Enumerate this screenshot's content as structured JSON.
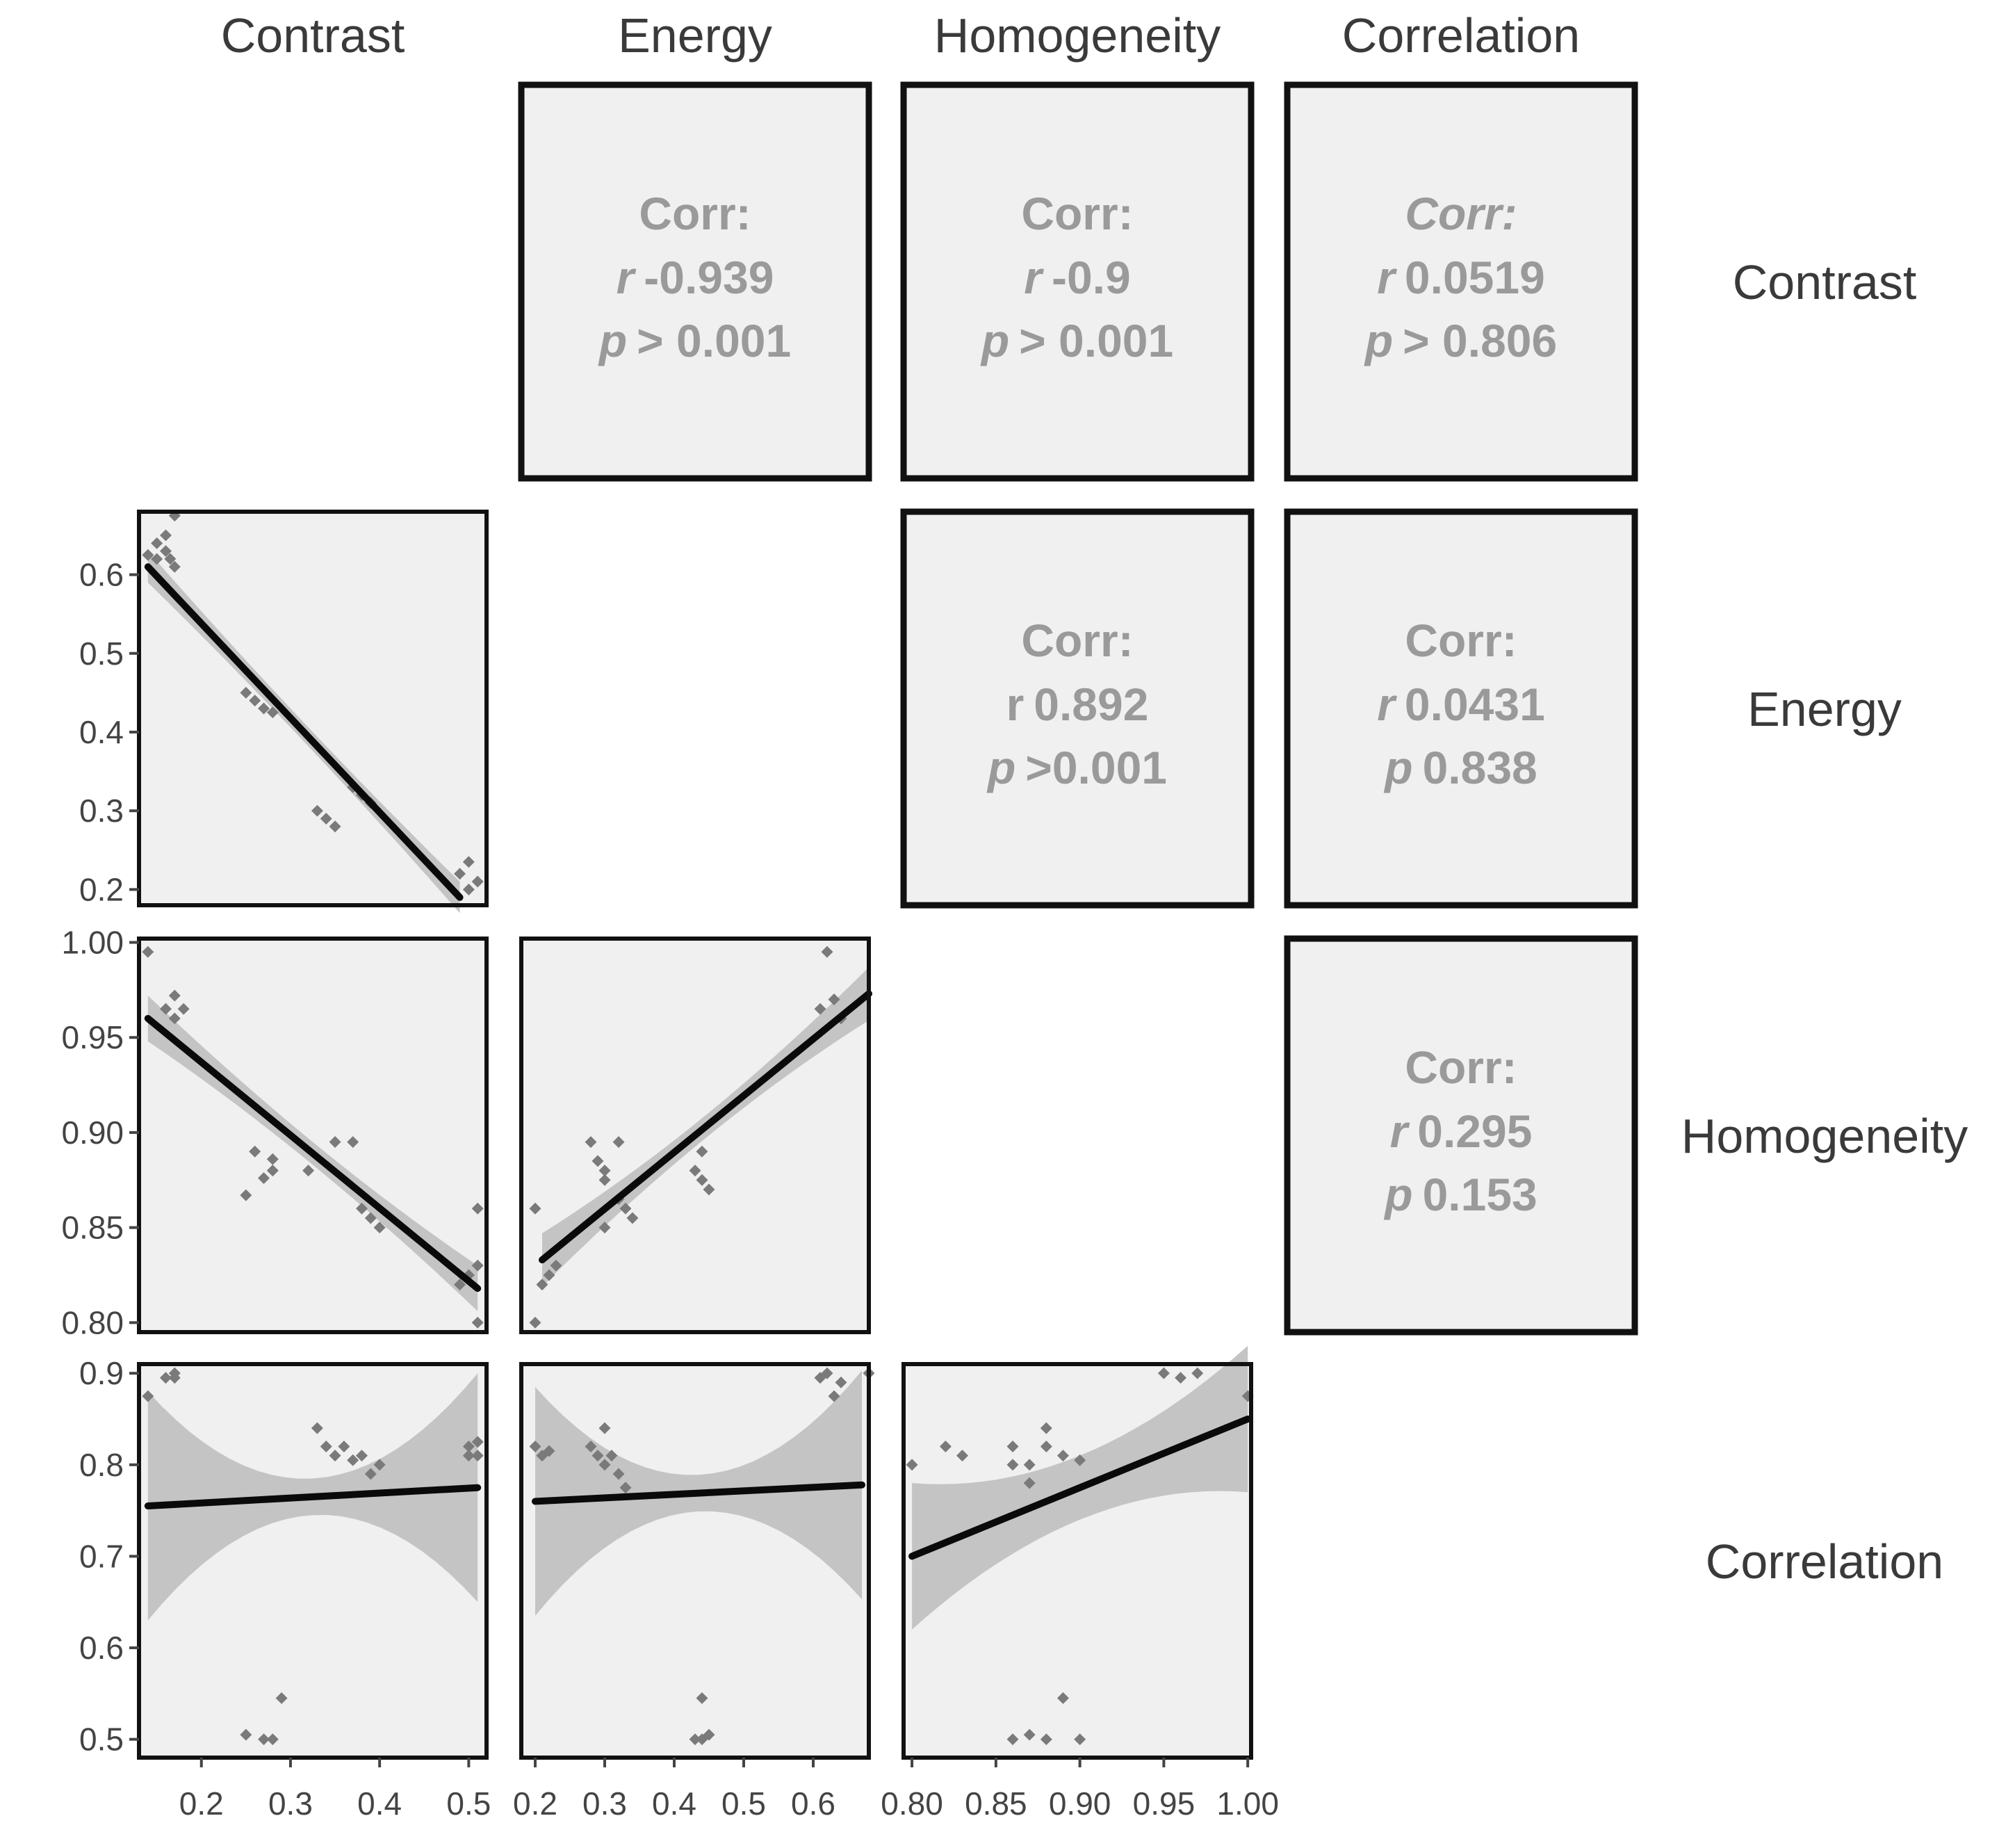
{
  "chart_data": {
    "type": "scatter",
    "title": "",
    "variables": [
      "Contrast",
      "Energy",
      "Homogeneity",
      "Correlation"
    ],
    "column_labels": [
      "Contrast",
      "Energy",
      "Homogeneity",
      "Correlation"
    ],
    "row_labels": [
      "Contrast",
      "Energy",
      "Homogeneity",
      "Correlation"
    ],
    "axes": {
      "Contrast": {
        "range": [
          0.13,
          0.52
        ],
        "ticks": [
          0.2,
          0.3,
          0.4,
          0.5
        ],
        "tick_labels": [
          "0.2",
          "0.3",
          "0.4",
          "0.5"
        ]
      },
      "Energy": {
        "range": [
          0.18,
          0.68
        ],
        "ticks": [
          0.2,
          0.3,
          0.4,
          0.5,
          0.6
        ],
        "tick_labels": [
          "0.2",
          "0.3",
          "0.4",
          "0.5",
          "0.6"
        ]
      },
      "Homogeneity": {
        "range": [
          0.795,
          1.002
        ],
        "ticks": [
          0.8,
          0.85,
          0.9,
          0.95,
          1.0
        ],
        "tick_labels": [
          "0.80",
          "0.85",
          "0.90",
          "0.95",
          "1.00"
        ]
      },
      "Correlation": {
        "range": [
          0.48,
          0.91
        ],
        "ticks": [
          0.5,
          0.6,
          0.7,
          0.8,
          0.9
        ],
        "tick_labels": [
          "0.5",
          "0.6",
          "0.7",
          "0.8",
          "0.9"
        ]
      }
    },
    "correlations": [
      {
        "row": "Contrast",
        "col": "Energy",
        "header": "Corr:",
        "r_symbol": "r",
        "r_value": "-0.939",
        "p_symbol": "p",
        "p_value": "> 0.001",
        "header_italic": false,
        "r_italic": true
      },
      {
        "row": "Contrast",
        "col": "Homogeneity",
        "header": "Corr:",
        "r_symbol": "r",
        "r_value": "-0.9",
        "p_symbol": "p",
        "p_value": "> 0.001",
        "header_italic": false,
        "r_italic": true
      },
      {
        "row": "Contrast",
        "col": "Correlation",
        "header": "Corr:",
        "r_symbol": "r",
        "r_value": "0.0519",
        "p_symbol": "p",
        "p_value": "> 0.806",
        "header_italic": true,
        "r_italic": true
      },
      {
        "row": "Energy",
        "col": "Homogeneity",
        "header": "Corr:",
        "r_symbol": "r",
        "r_value": "0.892",
        "p_symbol": "p",
        "p_value": ">0.001",
        "header_italic": false,
        "r_italic": false
      },
      {
        "row": "Energy",
        "col": "Correlation",
        "header": "Corr:",
        "r_symbol": "r",
        "r_value": "0.0431",
        "p_symbol": "p",
        "p_value": "0.838",
        "header_italic": false,
        "r_italic": true
      },
      {
        "row": "Homogeneity",
        "col": "Correlation",
        "header": "Corr:",
        "r_symbol": "r",
        "r_value": "0.295",
        "p_symbol": "p",
        "p_value": "0.153",
        "header_italic": false,
        "r_italic": true
      }
    ],
    "scatter_panels": [
      {
        "x_var": "Contrast",
        "y_var": "Energy",
        "points": [
          [
            0.14,
            0.625
          ],
          [
            0.15,
            0.64
          ],
          [
            0.16,
            0.63
          ],
          [
            0.165,
            0.62
          ],
          [
            0.17,
            0.61
          ],
          [
            0.17,
            0.675
          ],
          [
            0.16,
            0.65
          ],
          [
            0.15,
            0.62
          ],
          [
            0.25,
            0.45
          ],
          [
            0.26,
            0.44
          ],
          [
            0.27,
            0.43
          ],
          [
            0.28,
            0.425
          ],
          [
            0.33,
            0.3
          ],
          [
            0.34,
            0.29
          ],
          [
            0.35,
            0.28
          ],
          [
            0.37,
            0.33
          ],
          [
            0.38,
            0.32
          ],
          [
            0.39,
            0.31
          ],
          [
            0.49,
            0.22
          ],
          [
            0.5,
            0.2
          ],
          [
            0.51,
            0.21
          ],
          [
            0.5,
            0.235
          ]
        ],
        "fit": [
          [
            0.14,
            0.61
          ],
          [
            0.49,
            0.19
          ]
        ],
        "band": [
          0.012,
          0.02
        ]
      },
      {
        "x_var": "Contrast",
        "y_var": "Homogeneity",
        "points": [
          [
            0.14,
            0.995
          ],
          [
            0.16,
            0.965
          ],
          [
            0.17,
            0.972
          ],
          [
            0.17,
            0.96
          ],
          [
            0.18,
            0.965
          ],
          [
            0.25,
            0.867
          ],
          [
            0.26,
            0.89
          ],
          [
            0.27,
            0.876
          ],
          [
            0.28,
            0.88
          ],
          [
            0.28,
            0.886
          ],
          [
            0.32,
            0.88
          ],
          [
            0.35,
            0.895
          ],
          [
            0.37,
            0.895
          ],
          [
            0.38,
            0.86
          ],
          [
            0.39,
            0.855
          ],
          [
            0.4,
            0.85
          ],
          [
            0.49,
            0.82
          ],
          [
            0.5,
            0.825
          ],
          [
            0.51,
            0.83
          ],
          [
            0.51,
            0.86
          ],
          [
            0.51,
            0.8
          ]
        ],
        "fit": [
          [
            0.14,
            0.96
          ],
          [
            0.51,
            0.818
          ]
        ],
        "band": [
          0.006,
          0.012
        ]
      },
      {
        "x_var": "Energy",
        "y_var": "Homogeneity",
        "points": [
          [
            0.2,
            0.86
          ],
          [
            0.2,
            0.8
          ],
          [
            0.21,
            0.82
          ],
          [
            0.22,
            0.825
          ],
          [
            0.23,
            0.83
          ],
          [
            0.28,
            0.895
          ],
          [
            0.29,
            0.885
          ],
          [
            0.3,
            0.88
          ],
          [
            0.3,
            0.875
          ],
          [
            0.32,
            0.895
          ],
          [
            0.3,
            0.85
          ],
          [
            0.32,
            0.865
          ],
          [
            0.33,
            0.86
          ],
          [
            0.34,
            0.855
          ],
          [
            0.43,
            0.88
          ],
          [
            0.44,
            0.875
          ],
          [
            0.45,
            0.87
          ],
          [
            0.44,
            0.89
          ],
          [
            0.61,
            0.965
          ],
          [
            0.62,
            0.995
          ],
          [
            0.63,
            0.97
          ],
          [
            0.64,
            0.96
          ]
        ],
        "fit": [
          [
            0.21,
            0.833
          ],
          [
            0.68,
            0.973
          ]
        ],
        "band": [
          0.006,
          0.014
        ]
      },
      {
        "x_var": "Contrast",
        "y_var": "Correlation",
        "points": [
          [
            0.14,
            0.875
          ],
          [
            0.16,
            0.895
          ],
          [
            0.17,
            0.9
          ],
          [
            0.17,
            0.895
          ],
          [
            0.25,
            0.505
          ],
          [
            0.27,
            0.5
          ],
          [
            0.28,
            0.5
          ],
          [
            0.29,
            0.545
          ],
          [
            0.33,
            0.84
          ],
          [
            0.34,
            0.82
          ],
          [
            0.35,
            0.81
          ],
          [
            0.36,
            0.82
          ],
          [
            0.37,
            0.805
          ],
          [
            0.38,
            0.81
          ],
          [
            0.4,
            0.8
          ],
          [
            0.39,
            0.79
          ],
          [
            0.5,
            0.82
          ],
          [
            0.51,
            0.81
          ],
          [
            0.51,
            0.825
          ],
          [
            0.5,
            0.81
          ]
        ],
        "fit": [
          [
            0.14,
            0.755
          ],
          [
            0.51,
            0.775
          ]
        ],
        "band": [
          0.02,
          0.125
        ]
      },
      {
        "x_var": "Energy",
        "y_var": "Correlation",
        "points": [
          [
            0.2,
            0.82
          ],
          [
            0.21,
            0.81
          ],
          [
            0.22,
            0.815
          ],
          [
            0.28,
            0.82
          ],
          [
            0.29,
            0.81
          ],
          [
            0.3,
            0.84
          ],
          [
            0.3,
            0.8
          ],
          [
            0.31,
            0.81
          ],
          [
            0.32,
            0.79
          ],
          [
            0.33,
            0.775
          ],
          [
            0.43,
            0.5
          ],
          [
            0.44,
            0.5
          ],
          [
            0.44,
            0.545
          ],
          [
            0.45,
            0.505
          ],
          [
            0.61,
            0.895
          ],
          [
            0.62,
            0.9
          ],
          [
            0.63,
            0.875
          ],
          [
            0.64,
            0.89
          ],
          [
            0.68,
            0.9
          ]
        ],
        "fit": [
          [
            0.2,
            0.76
          ],
          [
            0.67,
            0.778
          ]
        ],
        "band": [
          0.02,
          0.125
        ]
      },
      {
        "x_var": "Homogeneity",
        "y_var": "Correlation",
        "points": [
          [
            0.8,
            0.8
          ],
          [
            0.82,
            0.82
          ],
          [
            0.83,
            0.81
          ],
          [
            0.86,
            0.8
          ],
          [
            0.86,
            0.82
          ],
          [
            0.87,
            0.78
          ],
          [
            0.87,
            0.8
          ],
          [
            0.88,
            0.84
          ],
          [
            0.88,
            0.82
          ],
          [
            0.89,
            0.81
          ],
          [
            0.9,
            0.805
          ],
          [
            0.86,
            0.5
          ],
          [
            0.87,
            0.505
          ],
          [
            0.88,
            0.5
          ],
          [
            0.89,
            0.545
          ],
          [
            0.9,
            0.5
          ],
          [
            0.95,
            0.9
          ],
          [
            0.96,
            0.895
          ],
          [
            0.97,
            0.9
          ],
          [
            1.0,
            0.875
          ]
        ],
        "fit": [
          [
            0.8,
            0.7
          ],
          [
            1.0,
            0.85
          ]
        ],
        "band": [
          0.035,
          0.08
        ]
      }
    ]
  }
}
